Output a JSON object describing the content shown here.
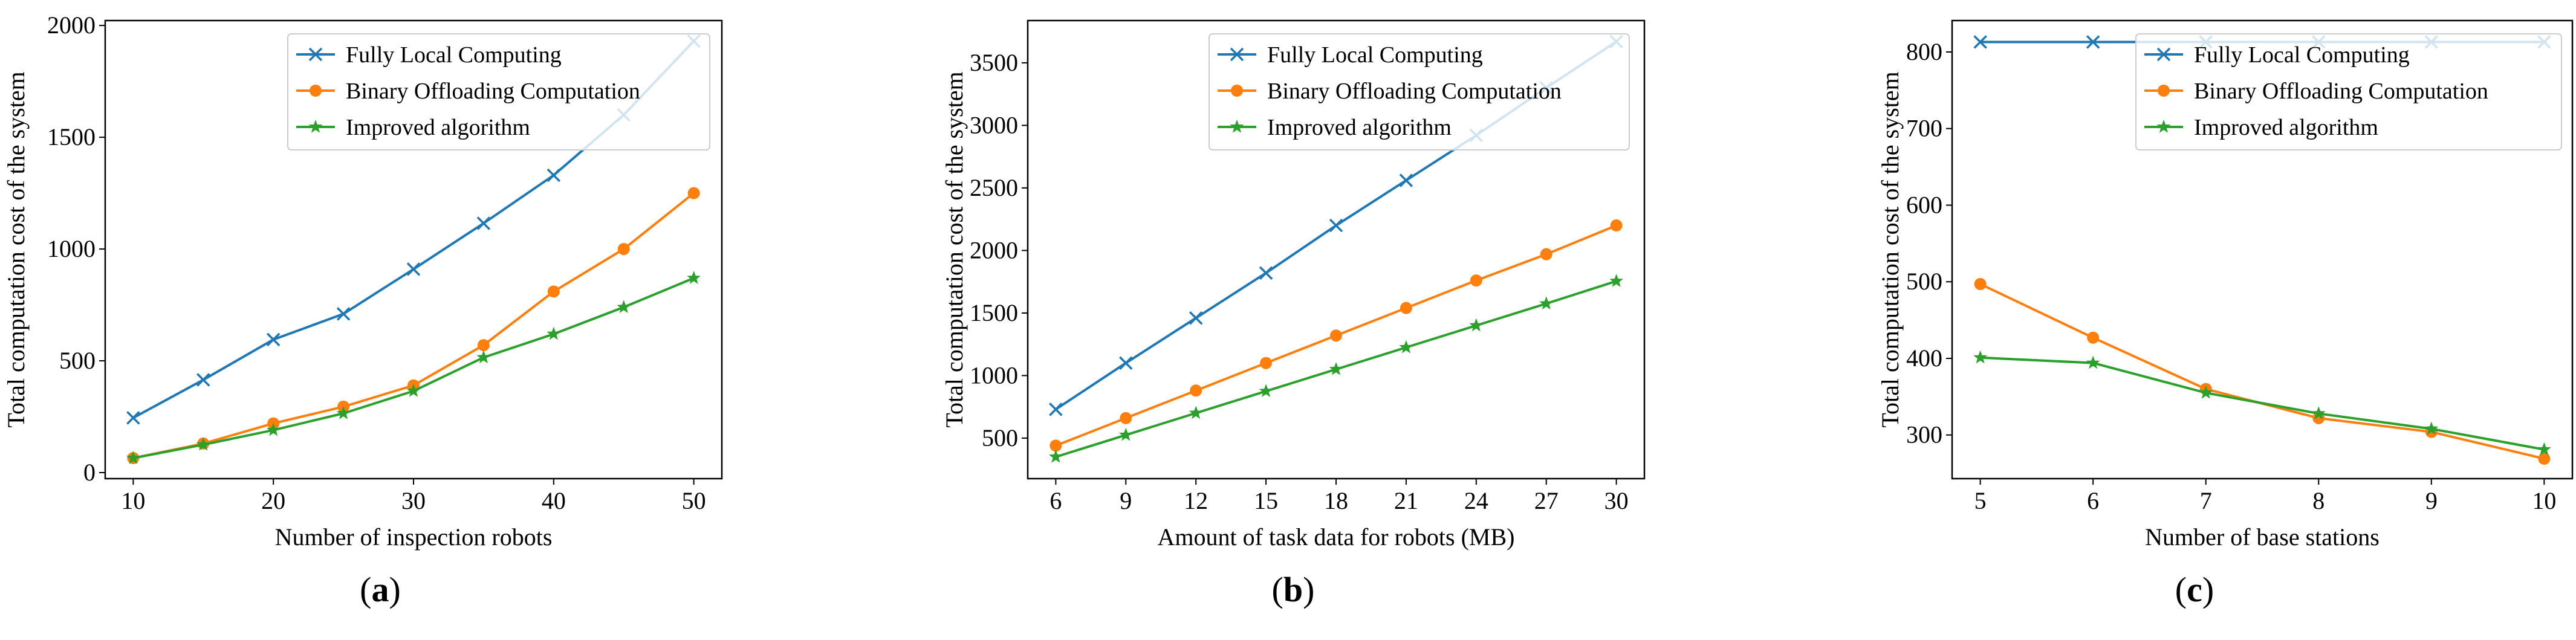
{
  "colors": {
    "fully_local": "#1f77b4",
    "binary": "#ff7f0e",
    "improved": "#2ca02c"
  },
  "chart_data": [
    {
      "type": "line",
      "caption": "a",
      "xlabel": "Number of inspection robots",
      "ylabel": "Total computation cost of the system",
      "x": [
        10,
        15,
        20,
        25,
        30,
        35,
        40,
        45,
        50
      ],
      "xticks": [
        10,
        20,
        30,
        40,
        50
      ],
      "yticks": [
        0,
        500,
        1000,
        1500,
        2000
      ],
      "xlim": [
        8,
        52
      ],
      "ylim": [
        -27,
        2022
      ],
      "grid": false,
      "legend_position": "top-right",
      "series": [
        {
          "name": "Fully Local Computing",
          "marker": "x",
          "values": [
            245,
            415,
            595,
            710,
            910,
            1115,
            1330,
            1600,
            1930
          ]
        },
        {
          "name": "Binary Offloading Computation",
          "marker": "o",
          "values": [
            65,
            130,
            220,
            295,
            390,
            570,
            810,
            1000,
            1250
          ]
        },
        {
          "name": "Improved algorithm",
          "marker": "*",
          "values": [
            65,
            125,
            190,
            265,
            365,
            515,
            620,
            740,
            870
          ]
        }
      ]
    },
    {
      "type": "line",
      "caption": "b",
      "xlabel": "Amount of task data for robots (MB)",
      "ylabel": "Total computation cost of the system",
      "x": [
        6,
        9,
        12,
        15,
        18,
        21,
        24,
        27,
        30
      ],
      "xticks": [
        6,
        9,
        12,
        15,
        18,
        21,
        24,
        27,
        30
      ],
      "yticks": [
        500,
        1000,
        1500,
        2000,
        2500,
        3000,
        3500
      ],
      "xlim": [
        4.8,
        31.2
      ],
      "ylim": [
        176,
        3838
      ],
      "grid": false,
      "legend_position": "top-right",
      "series": [
        {
          "name": "Fully Local Computing",
          "marker": "x",
          "values": [
            730,
            1100,
            1460,
            1820,
            2200,
            2560,
            2920,
            3300,
            3670
          ]
        },
        {
          "name": "Binary Offloading Computation",
          "marker": "o",
          "values": [
            440,
            660,
            880,
            1100,
            1320,
            1540,
            1760,
            1970,
            2200
          ]
        },
        {
          "name": "Improved algorithm",
          "marker": "*",
          "values": [
            350,
            525,
            700,
            875,
            1050,
            1225,
            1400,
            1575,
            1755
          ]
        }
      ]
    },
    {
      "type": "line",
      "caption": "c",
      "xlabel": "Number of base stations",
      "ylabel": "Total computation cost of the system",
      "x": [
        5,
        6,
        7,
        8,
        9,
        10
      ],
      "xticks": [
        5,
        6,
        7,
        8,
        9,
        10
      ],
      "yticks": [
        300,
        400,
        500,
        600,
        700,
        800
      ],
      "xlim": [
        4.75,
        10.25
      ],
      "ylim": [
        243,
        841
      ],
      "grid": false,
      "legend_position": "top-right",
      "series": [
        {
          "name": "Fully Local Computing",
          "marker": "x",
          "values": [
            813,
            813,
            813,
            813,
            813,
            813
          ]
        },
        {
          "name": "Binary Offloading Computation",
          "marker": "o",
          "values": [
            497,
            427,
            360,
            322,
            304,
            269
          ]
        },
        {
          "name": "Improved algorithm",
          "marker": "*",
          "values": [
            401,
            394,
            355,
            328,
            308,
            281
          ]
        }
      ]
    }
  ]
}
